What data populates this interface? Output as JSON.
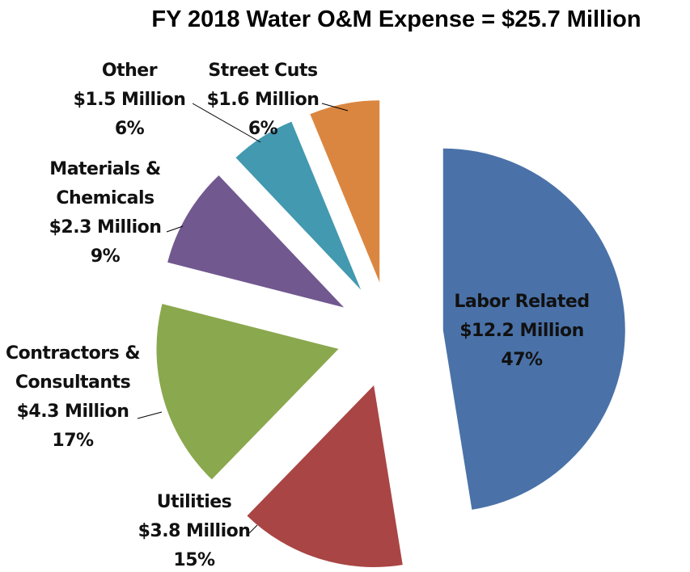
{
  "chart_data": {
    "type": "pie",
    "title": "FY 2018 Water O&M Expense = $25.7 Million",
    "categories": [
      "Labor Related",
      "Utilities",
      "Contractors & Consultants",
      "Materials & Chemicals",
      "Other",
      "Street Cuts"
    ],
    "values": [
      12.2,
      3.8,
      4.3,
      2.3,
      1.5,
      1.6
    ],
    "value_labels": [
      "$12.2 Million",
      "$3.8 Million",
      "$4.3 Million",
      "$2.3 Million",
      "$1.5 Million",
      "$1.6 Million"
    ],
    "percents": [
      47,
      15,
      17,
      9,
      6,
      6
    ],
    "percent_labels": [
      "47%",
      "15%",
      "17%",
      "9%",
      "6%",
      "6%"
    ],
    "colors": [
      "#4a72a8",
      "#a94544",
      "#8aa84d",
      "#71588f",
      "#4299b0",
      "#db8640"
    ]
  }
}
